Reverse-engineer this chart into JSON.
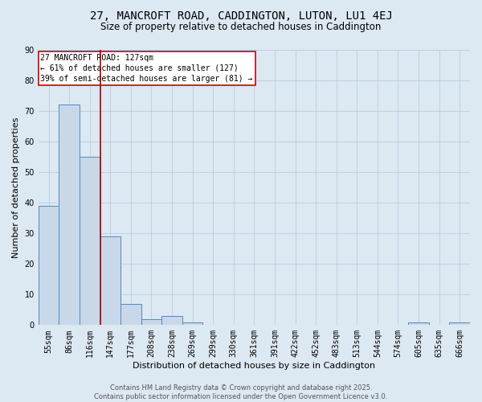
{
  "title_line1": "27, MANCROFT ROAD, CADDINGTON, LUTON, LU1 4EJ",
  "title_line2": "Size of property relative to detached houses in Caddington",
  "xlabel": "Distribution of detached houses by size in Caddington",
  "ylabel": "Number of detached properties",
  "bins": [
    "55sqm",
    "86sqm",
    "116sqm",
    "147sqm",
    "177sqm",
    "208sqm",
    "238sqm",
    "269sqm",
    "299sqm",
    "330sqm",
    "361sqm",
    "391sqm",
    "422sqm",
    "452sqm",
    "483sqm",
    "513sqm",
    "544sqm",
    "574sqm",
    "605sqm",
    "635sqm",
    "666sqm"
  ],
  "values": [
    39,
    72,
    55,
    29,
    7,
    2,
    3,
    1,
    0,
    0,
    0,
    0,
    0,
    0,
    0,
    0,
    0,
    0,
    1,
    0,
    1
  ],
  "bar_color": "#c8d8e8",
  "bar_edge_color": "#5588bb",
  "bar_linewidth": 0.7,
  "vline_x": 2.5,
  "vline_color": "#aa0000",
  "vline_linewidth": 1.2,
  "annotation_text": "27 MANCROFT ROAD: 127sqm\n← 61% of detached houses are smaller (127)\n39% of semi-detached houses are larger (81) →",
  "annotation_fontsize": 7.0,
  "annotation_box_color": "white",
  "annotation_box_edge_color": "#cc0000",
  "ylim": [
    0,
    90
  ],
  "yticks": [
    0,
    10,
    20,
    30,
    40,
    50,
    60,
    70,
    80,
    90
  ],
  "grid_color": "#a8c0d8",
  "grid_alpha": 0.8,
  "background_color": "#dce8f2",
  "plot_bg_color": "#dce8f2",
  "footer_line1": "Contains HM Land Registry data © Crown copyright and database right 2025.",
  "footer_line2": "Contains public sector information licensed under the Open Government Licence v3.0.",
  "footer_fontsize": 6.0,
  "title_fontsize1": 10,
  "title_fontsize2": 8.5,
  "xlabel_fontsize": 8.0,
  "ylabel_fontsize": 8.0,
  "tick_fontsize": 7
}
